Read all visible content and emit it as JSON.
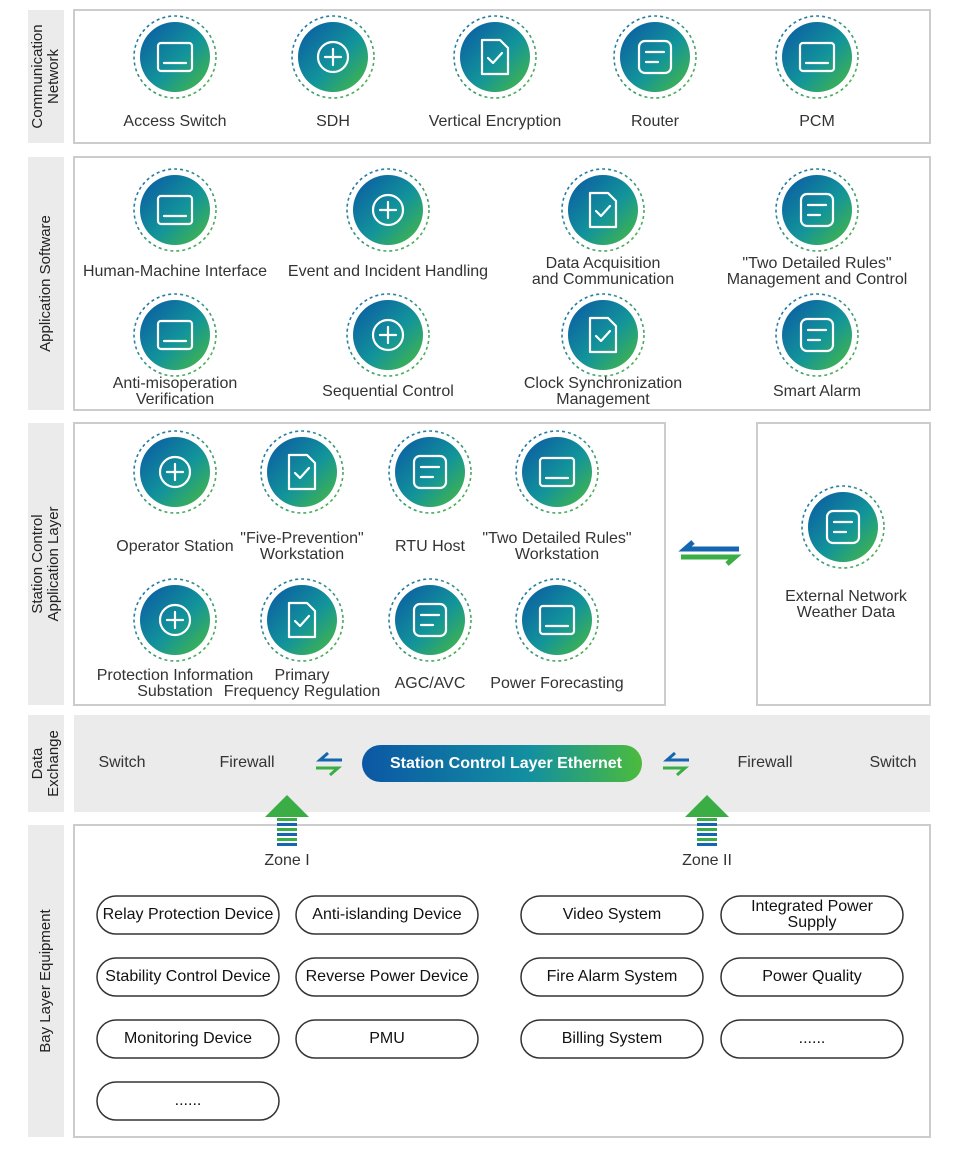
{
  "communication": {
    "title": [
      "Communication",
      "Network"
    ],
    "items": [
      {
        "label": [
          "Access Switch"
        ]
      },
      {
        "label": [
          "SDH"
        ]
      },
      {
        "label": [
          "Vertical Encryption"
        ]
      },
      {
        "label": [
          "Router"
        ]
      },
      {
        "label": [
          "PCM"
        ]
      }
    ]
  },
  "application": {
    "title": [
      "Application Software"
    ],
    "items": [
      {
        "label": [
          "Human-Machine Interface"
        ]
      },
      {
        "label": [
          "Event and Incident Handling"
        ]
      },
      {
        "label": [
          "Data Acquisition",
          "and Communication"
        ]
      },
      {
        "label": [
          "\"Two Detailed Rules\"",
          "Management and Control"
        ]
      },
      {
        "label": [
          "Anti-misoperation",
          "Verification"
        ]
      },
      {
        "label": [
          "Sequential Control"
        ]
      },
      {
        "label": [
          "Clock Synchronization",
          "Management"
        ]
      },
      {
        "label": [
          "Smart Alarm"
        ]
      }
    ]
  },
  "station": {
    "title": [
      "Station Control",
      "Application Layer"
    ],
    "items": [
      {
        "label": [
          "Operator Station"
        ]
      },
      {
        "label": [
          "\"Five-Prevention\"",
          "Workstation"
        ]
      },
      {
        "label": [
          "RTU Host"
        ]
      },
      {
        "label": [
          "\"Two Detailed Rules\"",
          "Workstation"
        ]
      },
      {
        "label": [
          "Protection Information",
          "Substation"
        ]
      },
      {
        "label": [
          "Primary",
          "Frequency Regulation"
        ]
      },
      {
        "label": [
          "AGC/AVC"
        ]
      },
      {
        "label": [
          "Power Forecasting"
        ]
      }
    ],
    "external": {
      "label": [
        "External Network",
        "Weather Data"
      ]
    }
  },
  "exchange": {
    "title": [
      "Data",
      "Exchange"
    ],
    "left": [
      "Switch",
      "Firewall"
    ],
    "ethernet": "Station Control Layer Ethernet",
    "right": [
      "Firewall",
      "Switch"
    ]
  },
  "bay": {
    "title": [
      "Bay Layer Equipment"
    ],
    "zones": [
      {
        "name": "Zone I",
        "devices": [
          [
            "Relay Protection Device"
          ],
          [
            "Anti-islanding Device"
          ],
          [
            "Stability Control Device"
          ],
          [
            "Reverse Power Device"
          ],
          [
            "Monitoring Device"
          ],
          [
            "PMU"
          ],
          [
            "......"
          ]
        ]
      },
      {
        "name": "Zone II",
        "devices": [
          [
            "Video System"
          ],
          [
            "Integrated Power",
            "Supply"
          ],
          [
            "Fire Alarm System"
          ],
          [
            "Power Quality"
          ],
          [
            "Billing System"
          ],
          [
            "......"
          ]
        ]
      }
    ]
  }
}
